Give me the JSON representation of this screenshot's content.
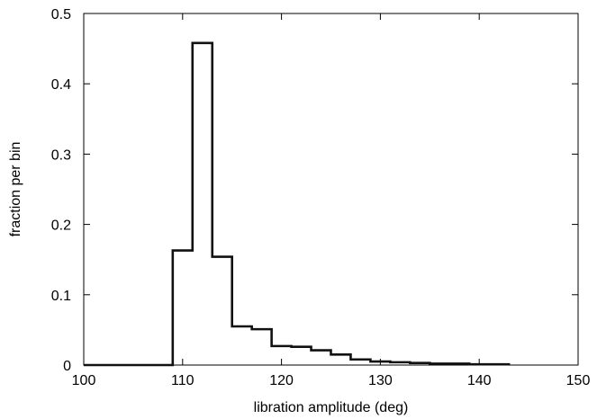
{
  "chart_data": {
    "type": "bar",
    "style": "step-histogram",
    "xlabel": "libration amplitude (deg)",
    "ylabel": "fraction per bin",
    "xlim": [
      100,
      150
    ],
    "ylim": [
      0,
      0.5
    ],
    "xticks": [
      "100",
      "110",
      "120",
      "130",
      "140",
      "150"
    ],
    "yticks": [
      "0",
      "0.1",
      "0.2",
      "0.3",
      "0.4",
      "0.5"
    ],
    "grid": false,
    "legend": "none",
    "bin_edges": [
      100,
      109,
      111,
      113,
      115,
      117,
      119,
      121,
      123,
      125,
      127,
      129,
      131,
      133,
      135,
      137,
      139,
      141,
      143
    ],
    "values": [
      0,
      0.163,
      0.458,
      0.154,
      0.055,
      0.051,
      0.027,
      0.026,
      0.021,
      0.015,
      0.008,
      0.005,
      0.004,
      0.003,
      0.002,
      0.002,
      0.001,
      0.001
    ],
    "line_color": "#111111"
  }
}
